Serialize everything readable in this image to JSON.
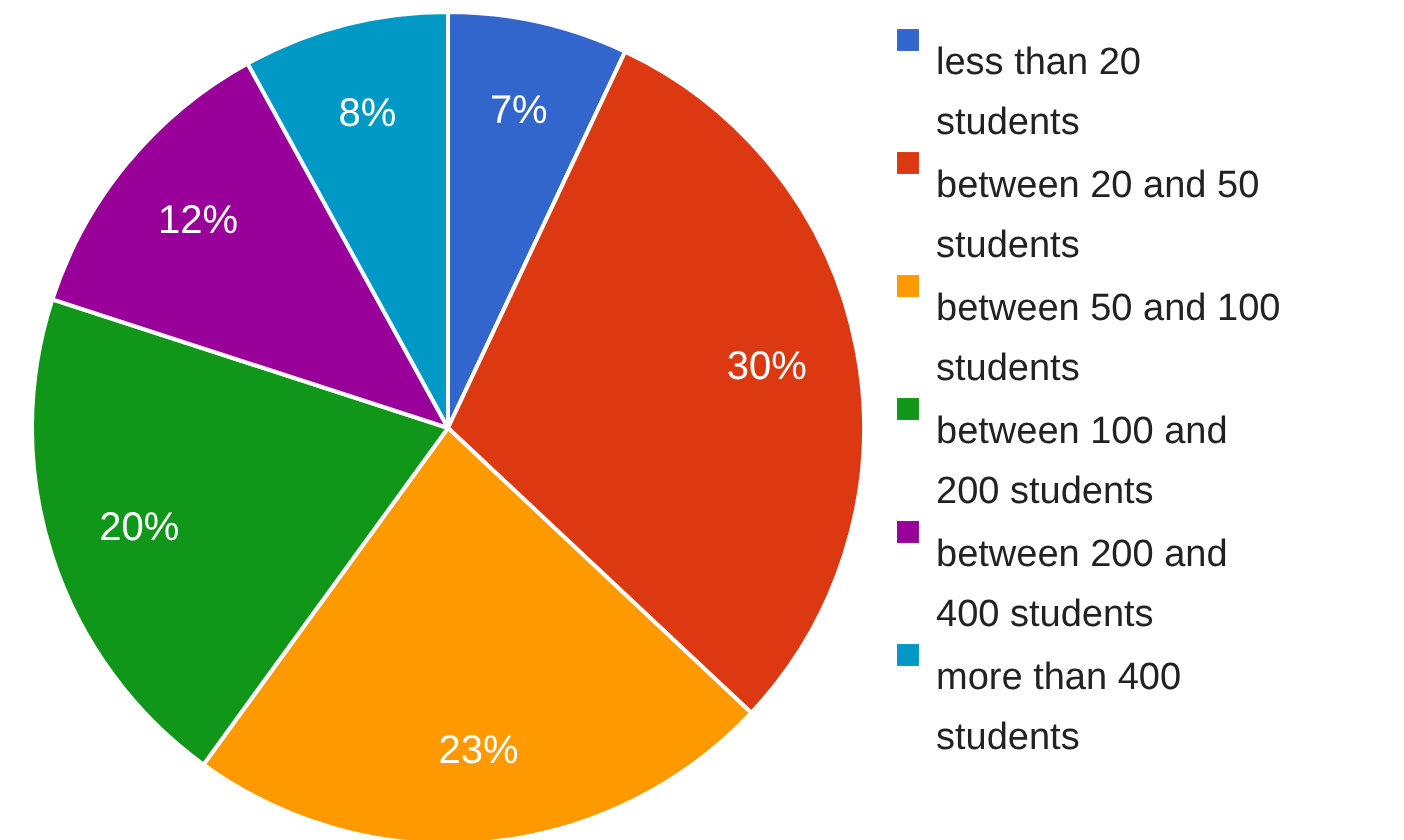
{
  "chart_data": {
    "type": "pie",
    "categories": [
      "less than 20 students",
      "between 20 and 50 students",
      "between 50 and 100 students",
      "between 100 and 200 students",
      "between 200 and 400 students",
      "more than 400 students"
    ],
    "values": [
      7,
      30,
      23,
      20,
      12,
      8
    ],
    "colors": [
      "#3366cc",
      "#dc3912",
      "#ff9900",
      "#109618",
      "#990099",
      "#0099c6"
    ],
    "value_labels": [
      "7%",
      "30%",
      "23%",
      "20%",
      "12%",
      "8%"
    ],
    "legend": "right"
  }
}
